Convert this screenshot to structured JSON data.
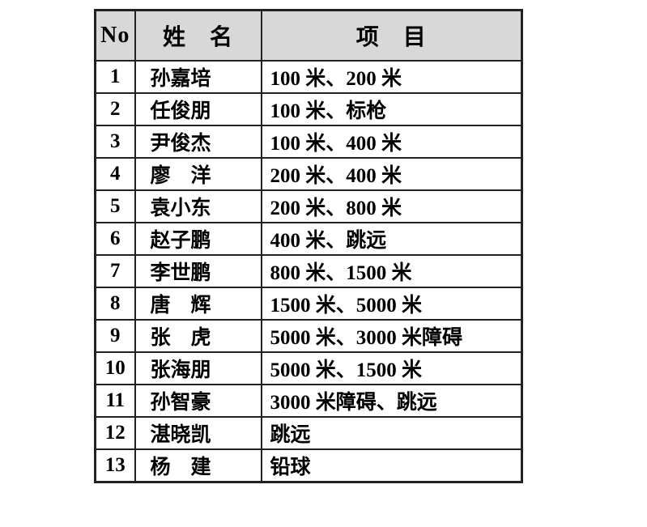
{
  "document": {
    "background": "#ffffff",
    "header_bg": "#d8d8d8",
    "border_color": "#222222",
    "text_color": "#000000"
  },
  "table": {
    "columns": [
      {
        "key": "no",
        "label": "No"
      },
      {
        "key": "name",
        "label": "姓　名"
      },
      {
        "key": "events",
        "label": "项　目"
      }
    ],
    "rows": [
      {
        "no": "1",
        "name": "孙嘉培",
        "events": "100 米、200 米"
      },
      {
        "no": "2",
        "name": "任俊朋",
        "events": "100 米、标枪"
      },
      {
        "no": "3",
        "name": "尹俊杰",
        "events": "100 米、400 米"
      },
      {
        "no": "4",
        "name": "廖　洋",
        "events": "200 米、400 米"
      },
      {
        "no": "5",
        "name": "袁小东",
        "events": "200 米、800 米"
      },
      {
        "no": "6",
        "name": "赵子鹏",
        "events": "400 米、跳远"
      },
      {
        "no": "7",
        "name": "李世鹏",
        "events": "800 米、1500 米"
      },
      {
        "no": "8",
        "name": "唐　辉",
        "events": "1500 米、5000 米"
      },
      {
        "no": "9",
        "name": "张　虎",
        "events": "5000 米、3000 米障碍"
      },
      {
        "no": "10",
        "name": "张海朋",
        "events": "5000 米、1500 米"
      },
      {
        "no": "11",
        "name": "孙智豪",
        "events": "3000 米障碍、跳远"
      },
      {
        "no": "12",
        "name": "湛晓凯",
        "events": "跳远"
      },
      {
        "no": "13",
        "name": "杨　建",
        "events": "铅球"
      }
    ]
  }
}
